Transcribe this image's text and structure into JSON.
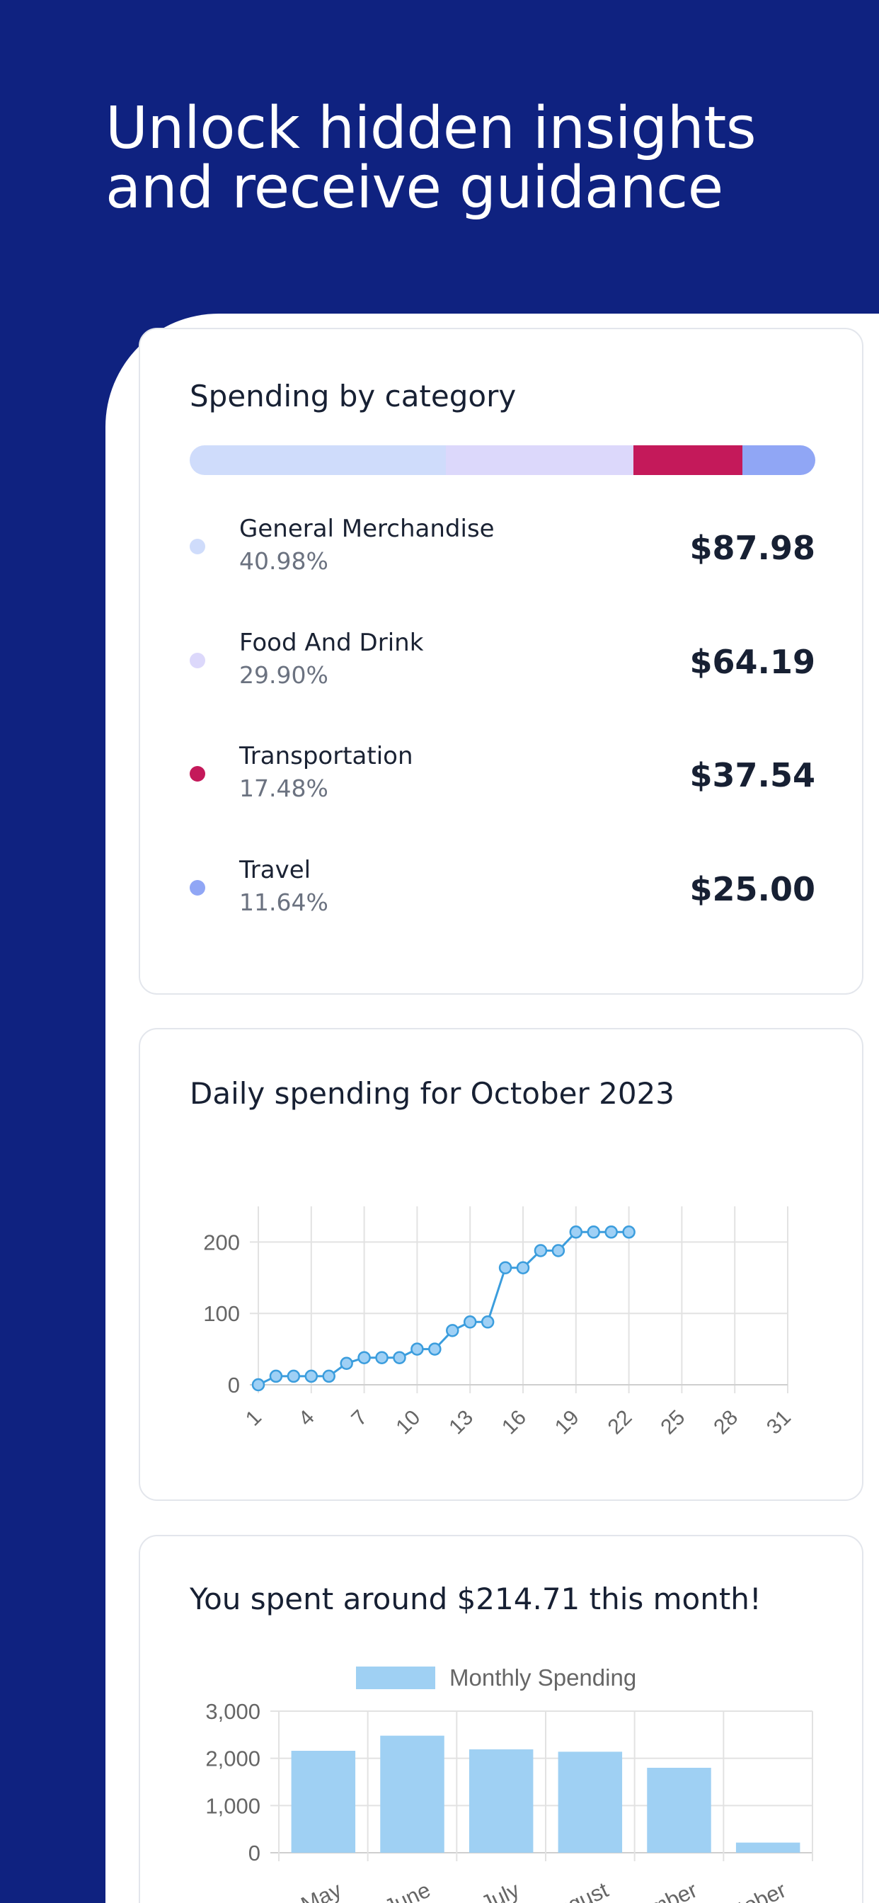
{
  "hero": {
    "title": "Unlock hidden insights\nand receive guidance"
  },
  "category_card": {
    "title": "Spending by category",
    "items": [
      {
        "name": "General Merchandise",
        "percent": "40.98%",
        "amount": "$87.98",
        "share": 40.98,
        "color": "#cfdcfb"
      },
      {
        "name": "Food And Drink",
        "percent": "29.90%",
        "amount": "$64.19",
        "share": 29.9,
        "color": "#dcd8fb"
      },
      {
        "name": "Transportation",
        "percent": "17.48%",
        "amount": "$37.54",
        "share": 17.48,
        "color": "#c4195a"
      },
      {
        "name": "Travel",
        "percent": "11.64%",
        "amount": "$25.00",
        "share": 11.64,
        "color": "#90a6f5"
      }
    ]
  },
  "daily_card": {
    "title": "Daily spending for October 2023"
  },
  "monthly_card": {
    "title": "You spent around $214.71 this month!"
  },
  "colors": {
    "background": "#0f2280",
    "line": "#3b9ddd",
    "point_fill": "#9fd0f5",
    "bar_fill": "#9fd0f3",
    "grid": "#e2e2e2"
  },
  "chart_data": [
    {
      "type": "line",
      "title": "Daily spending for October 2023",
      "x": [
        1,
        2,
        3,
        4,
        5,
        6,
        7,
        8,
        9,
        10,
        11,
        12,
        13,
        14,
        15,
        16,
        17,
        18,
        19,
        20,
        21,
        22
      ],
      "x_ticks": [
        1,
        4,
        7,
        10,
        13,
        16,
        19,
        22,
        25,
        28,
        31
      ],
      "x_range": [
        1,
        31
      ],
      "values": [
        0,
        12,
        12,
        12,
        12,
        30,
        38,
        38,
        38,
        50,
        50,
        76,
        88,
        88,
        164,
        164,
        188,
        188,
        214,
        214,
        214,
        214
      ],
      "y_ticks": [
        0,
        100,
        200
      ],
      "ylim": [
        0,
        250
      ],
      "grid": true
    },
    {
      "type": "bar",
      "title": "You spent around $214.71 this month!",
      "categories": [
        "May",
        "June",
        "July",
        "August",
        "September",
        "October"
      ],
      "series": [
        {
          "name": "Monthly Spending",
          "values": [
            2160,
            2480,
            2190,
            2140,
            1800,
            215
          ]
        }
      ],
      "y_ticks": [
        "0",
        "1,000",
        "2,000",
        "3,000"
      ],
      "ylim": [
        0,
        3000
      ],
      "legend": "top-center",
      "grid": true
    }
  ]
}
